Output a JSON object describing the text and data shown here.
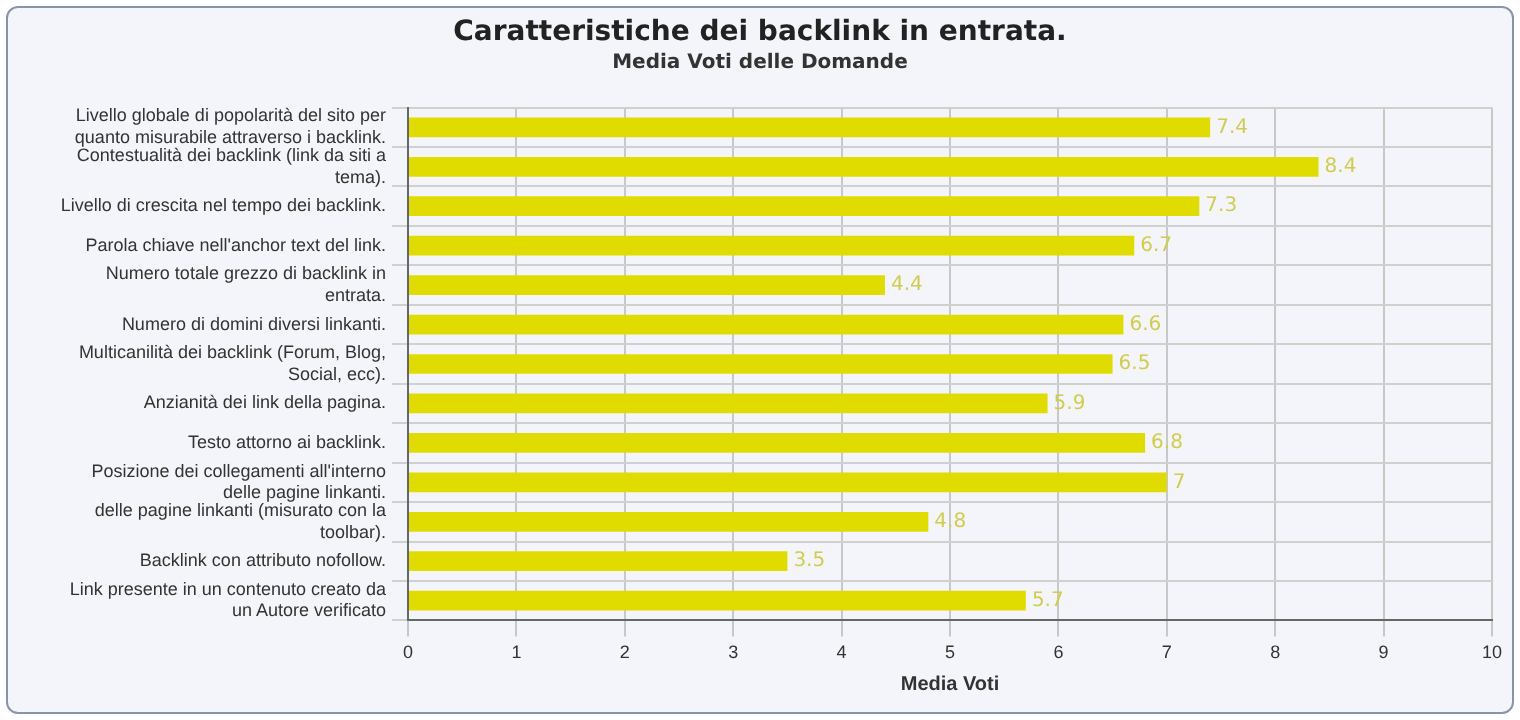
{
  "chart_data": {
    "type": "bar",
    "orientation": "horizontal",
    "title": "Caratteristiche dei backlink in entrata.",
    "subtitle": "Media Voti delle Domande",
    "xlabel": "Media Voti",
    "categories": [
      "Livello globale di popolarità del sito per quanto misurabile attraverso i backlink.",
      "Contestualità dei backlink (link da siti a tema).",
      "Livello di crescita nel tempo dei backlink.",
      "Parola chiave nell'anchor text del link.",
      "Numero totale grezzo di backlink in entrata.",
      "Numero di domini diversi linkanti.",
      "Multicanilità dei backlink (Forum, Blog, Social, ecc).",
      "Anzianità dei link della pagina.",
      "Testo attorno ai backlink.",
      "Posizione dei collegamenti all'interno delle pagine linkanti.",
      "delle pagine linkanti (misurato con la toolbar).",
      "Backlink con attributo nofollow.",
      "Link presente in un contenuto creato da un Autore verificato"
    ],
    "values": [
      7.4,
      8.4,
      7.3,
      6.7,
      4.4,
      6.6,
      6.5,
      5.9,
      6.8,
      7,
      4.8,
      3.5,
      5.7
    ],
    "color": "#e0dc00",
    "xlim": [
      0,
      10
    ],
    "xticks": [
      0,
      1,
      2,
      3,
      4,
      5,
      6,
      7,
      8,
      9,
      10
    ],
    "grid": true,
    "data_labels": true
  }
}
